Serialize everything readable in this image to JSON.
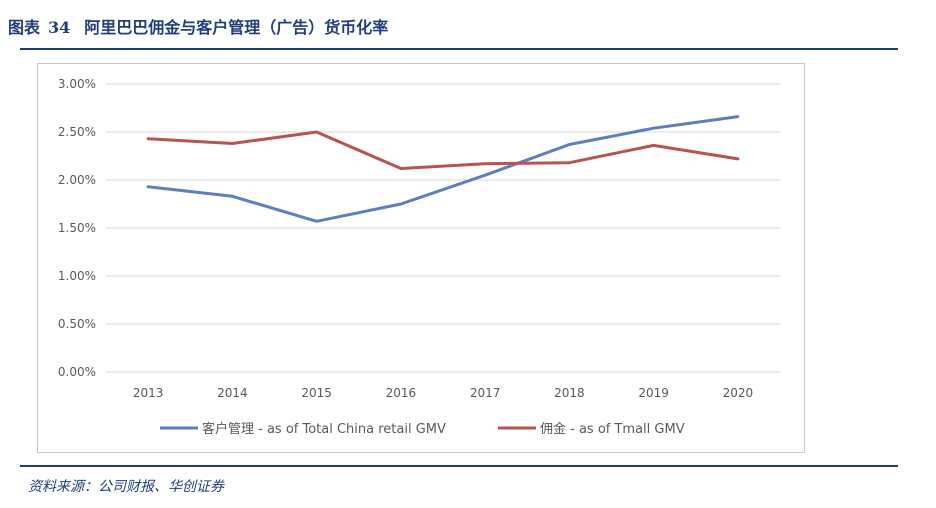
{
  "header": {
    "figure_label": "图表",
    "figure_number": "34",
    "title": "阿里巴巴佣金与客户管理（广告）货币化率"
  },
  "source": "资料来源：公司财报、华创证券",
  "colors": {
    "title": "#1f3f7a",
    "series_customer_mgmt": "#5b7fbf",
    "series_commission": "#b85450",
    "gridline": "#d9d9d9"
  },
  "chart_data": {
    "type": "line",
    "title": "",
    "xlabel": "",
    "ylabel": "",
    "categories": [
      "2013",
      "2014",
      "2015",
      "2016",
      "2017",
      "2018",
      "2019",
      "2020"
    ],
    "ylim": [
      0,
      3
    ],
    "y_ticks": [
      "0.00%",
      "0.50%",
      "1.00%",
      "1.50%",
      "2.00%",
      "2.50%",
      "3.00%"
    ],
    "y_unit": "%",
    "grid": true,
    "legend_position": "bottom",
    "series": [
      {
        "name": "客户管理 - as of Total China retail GMV",
        "color": "#5b7fbf",
        "values": [
          1.93,
          1.83,
          1.57,
          1.75,
          2.05,
          2.37,
          2.54,
          2.66
        ]
      },
      {
        "name": "佣金 - as of Tmall GMV",
        "color": "#b85450",
        "values": [
          2.43,
          2.38,
          2.5,
          2.12,
          2.17,
          2.18,
          2.36,
          2.22
        ]
      }
    ]
  }
}
